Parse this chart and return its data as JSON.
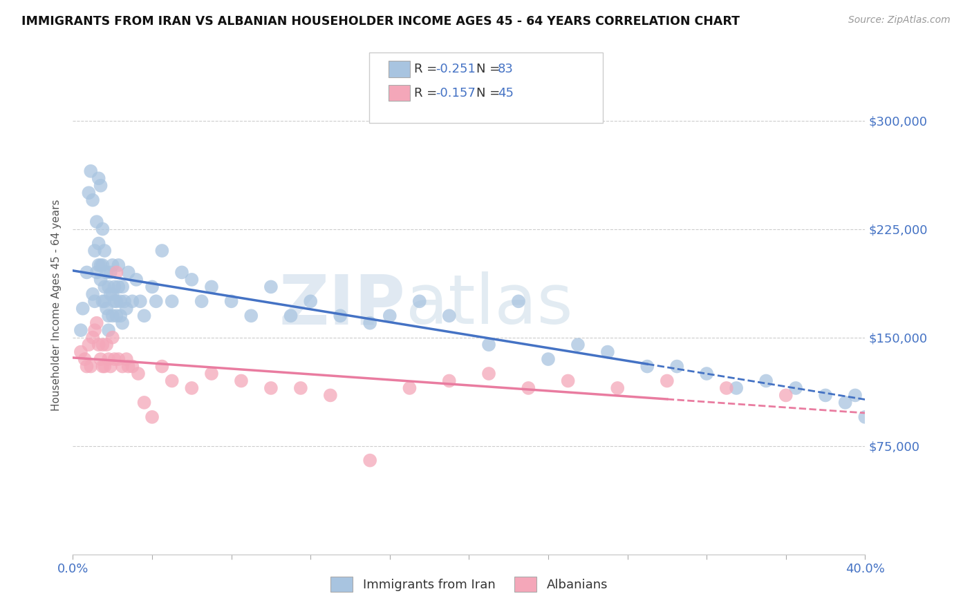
{
  "title": "IMMIGRANTS FROM IRAN VS ALBANIAN HOUSEHOLDER INCOME AGES 45 - 64 YEARS CORRELATION CHART",
  "source": "Source: ZipAtlas.com",
  "ylabel": "Householder Income Ages 45 - 64 years",
  "legend_label1": "Immigrants from Iran",
  "legend_label2": "Albanians",
  "ytick_labels": [
    "$75,000",
    "$150,000",
    "$225,000",
    "$300,000"
  ],
  "ytick_values": [
    75000,
    150000,
    225000,
    300000
  ],
  "ymin": 0,
  "ymax": 345000,
  "xmin": 0.0,
  "xmax": 0.4,
  "color_iran": "#a8c4e0",
  "color_albanian": "#f4a7b9",
  "color_iran_line": "#4472c4",
  "color_albanian_line": "#e97ca0",
  "iran_scatter_x": [
    0.004,
    0.005,
    0.007,
    0.008,
    0.009,
    0.01,
    0.01,
    0.011,
    0.011,
    0.012,
    0.012,
    0.013,
    0.013,
    0.013,
    0.014,
    0.014,
    0.014,
    0.015,
    0.015,
    0.015,
    0.016,
    0.016,
    0.016,
    0.017,
    0.017,
    0.018,
    0.018,
    0.018,
    0.019,
    0.019,
    0.02,
    0.02,
    0.02,
    0.021,
    0.021,
    0.022,
    0.022,
    0.023,
    0.023,
    0.024,
    0.024,
    0.025,
    0.025,
    0.026,
    0.027,
    0.028,
    0.03,
    0.032,
    0.034,
    0.036,
    0.04,
    0.042,
    0.045,
    0.05,
    0.055,
    0.06,
    0.065,
    0.07,
    0.08,
    0.09,
    0.1,
    0.11,
    0.12,
    0.135,
    0.15,
    0.16,
    0.175,
    0.19,
    0.21,
    0.225,
    0.24,
    0.255,
    0.27,
    0.29,
    0.305,
    0.32,
    0.335,
    0.35,
    0.365,
    0.38,
    0.39,
    0.395,
    0.4
  ],
  "iran_scatter_y": [
    155000,
    170000,
    195000,
    250000,
    265000,
    245000,
    180000,
    210000,
    175000,
    230000,
    195000,
    200000,
    215000,
    260000,
    255000,
    200000,
    190000,
    225000,
    200000,
    175000,
    185000,
    210000,
    175000,
    195000,
    170000,
    185000,
    165000,
    155000,
    195000,
    180000,
    200000,
    180000,
    165000,
    185000,
    175000,
    175000,
    165000,
    200000,
    185000,
    175000,
    165000,
    185000,
    160000,
    175000,
    170000,
    195000,
    175000,
    190000,
    175000,
    165000,
    185000,
    175000,
    210000,
    175000,
    195000,
    190000,
    175000,
    185000,
    175000,
    165000,
    185000,
    165000,
    175000,
    165000,
    160000,
    165000,
    175000,
    165000,
    145000,
    175000,
    135000,
    145000,
    140000,
    130000,
    130000,
    125000,
    115000,
    120000,
    115000,
    110000,
    105000,
    110000,
    95000
  ],
  "albanian_scatter_x": [
    0.004,
    0.006,
    0.007,
    0.008,
    0.009,
    0.01,
    0.011,
    0.012,
    0.013,
    0.014,
    0.015,
    0.015,
    0.016,
    0.017,
    0.018,
    0.019,
    0.02,
    0.021,
    0.022,
    0.023,
    0.025,
    0.027,
    0.028,
    0.03,
    0.033,
    0.036,
    0.04,
    0.045,
    0.05,
    0.06,
    0.07,
    0.085,
    0.1,
    0.115,
    0.13,
    0.15,
    0.17,
    0.19,
    0.21,
    0.23,
    0.25,
    0.275,
    0.3,
    0.33,
    0.36
  ],
  "albanian_scatter_y": [
    140000,
    135000,
    130000,
    145000,
    130000,
    150000,
    155000,
    160000,
    145000,
    135000,
    145000,
    130000,
    130000,
    145000,
    135000,
    130000,
    150000,
    135000,
    195000,
    135000,
    130000,
    135000,
    130000,
    130000,
    125000,
    105000,
    95000,
    130000,
    120000,
    115000,
    125000,
    120000,
    115000,
    115000,
    110000,
    65000,
    115000,
    120000,
    125000,
    115000,
    120000,
    115000,
    120000,
    115000,
    110000
  ]
}
